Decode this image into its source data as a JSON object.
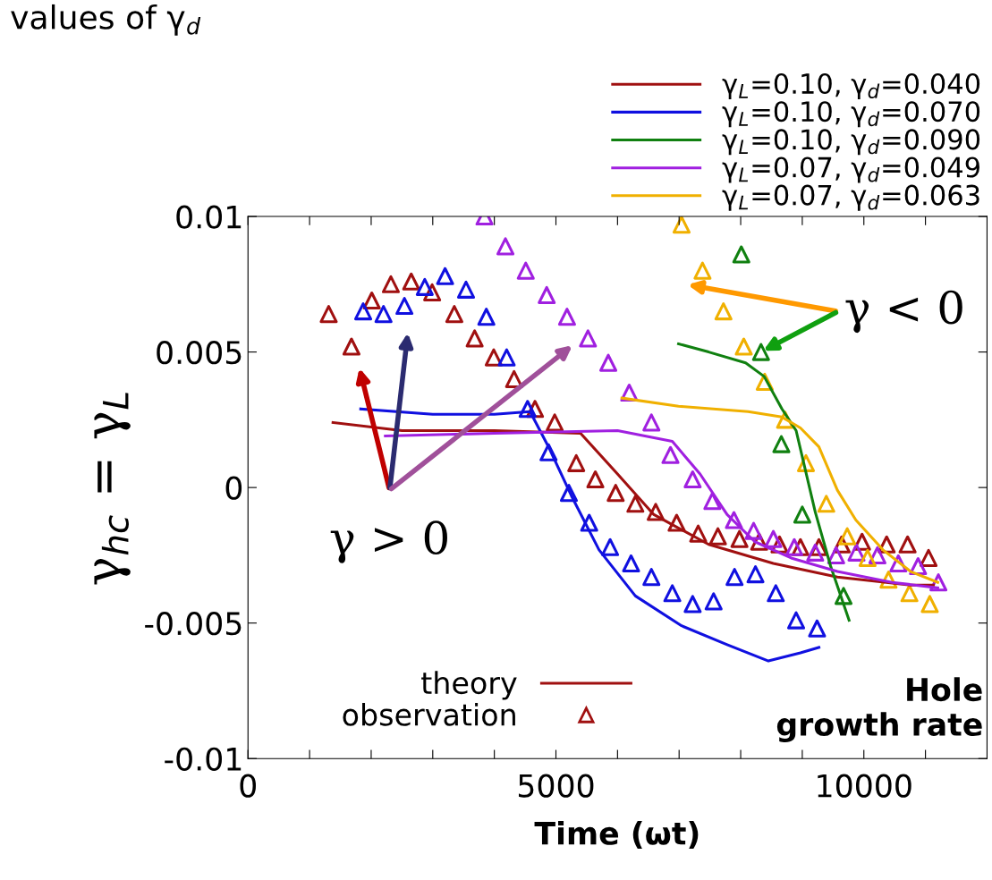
{
  "chart_data": {
    "type": "line",
    "xlabel": "Time (ωt)",
    "ylabel": "γ$_{hc}$ = γ$_{L}$",
    "xlim": [
      0,
      12000
    ],
    "ylim": [
      -0.01,
      0.01
    ],
    "xticks": [
      0,
      {
        "value": 1000,
        "label": null
      },
      {
        "value": 2000,
        "label": null
      },
      {
        "value": 3000,
        "label": null
      },
      {
        "value": 4000,
        "label": null
      },
      5000,
      {
        "value": 6000,
        "label": null
      },
      {
        "value": 7000,
        "label": null
      },
      {
        "value": 8000,
        "label": null
      },
      {
        "value": 9000,
        "label": null
      },
      10000,
      {
        "value": 11000,
        "label": null
      }
    ],
    "yticks": [
      {
        "value": 0.01,
        "label": "0.01"
      },
      {
        "value": 0.005,
        "label": "0.005"
      },
      {
        "value": 0,
        "label": "0"
      },
      {
        "value": -0.005,
        "label": "-0.005"
      },
      {
        "value": -0.01,
        "label": "-0.01"
      }
    ],
    "grid": false,
    "legend": "top right",
    "line_style": "solid",
    "annotations": [
      "values of γ$_{d}$",
      "theory",
      "observation",
      "Hole\ngrowth rate",
      "γ > 0",
      {
        "text": "γ < 0",
        "x": 8330,
        "y": 0.005
      }
    ],
    "series": [
      {
        "name": "γ$_{L}$=0.10, γ$_{d}$=0.040",
        "color": "#a01010",
        "x": [
          1380,
          2500,
          4000,
          5400,
          6000,
          6590,
          7480,
          8530,
          9570,
          10760,
          11130
        ],
        "values": [
          0.0024,
          0.0021,
          0.0021,
          0.002,
          0.0005,
          -0.001,
          -0.0021,
          -0.0028,
          -0.0033,
          -0.0036,
          -0.0036
        ]
      },
      {
        "name": "γ$_{L}$=0.10, γ$_{d}$=0.070",
        "color": "#1010e0",
        "x": [
          1830,
          3000,
          4000,
          4580,
          4880,
          5250,
          5700,
          6290,
          7040,
          7780,
          8450,
          8970,
          9270
        ],
        "values": [
          0.0029,
          0.0027,
          0.0027,
          0.0028,
          0.0015,
          -0.0003,
          -0.0023,
          -0.004,
          -0.0051,
          -0.0058,
          -0.0064,
          -0.0061,
          -0.0059
        ]
      },
      {
        "name": "γ$_{L}$=0.10, γ$_{d}$=0.090",
        "color": "#108010",
        "x": [
          6990,
          7480,
          8080,
          8380,
          8670,
          8900,
          9210,
          9460,
          9760
        ],
        "values": [
          0.0053,
          0.005,
          0.0046,
          0.0041,
          0.0029,
          0.0021,
          -0.0009,
          -0.0029,
          -0.0049
        ]
      },
      {
        "name": "γ$_{L}$=0.07, γ$_{d}$=0.049",
        "color": "#a020e0",
        "x": [
          2230,
          4000,
          6000,
          6890,
          7340,
          7780,
          8230,
          8820,
          9570,
          10460,
          11200
        ],
        "values": [
          0.0019,
          0.002,
          0.0021,
          0.0017,
          0.0005,
          -0.001,
          -0.002,
          -0.0026,
          -0.0031,
          -0.0035,
          -0.0037
        ]
      },
      {
        "name": "γ$_{L}$=0.07, γ$_{d}$=0.063",
        "color": "#f0b000",
        "x": [
          6070,
          6990,
          8120,
          8670,
          8970,
          9270,
          9570,
          9870,
          10310,
          10760,
          11200
        ],
        "values": [
          0.0033,
          0.003,
          0.0028,
          0.0026,
          0.0022,
          0.0015,
          -0.0001,
          -0.0012,
          -0.0023,
          -0.0031,
          -0.0035
        ]
      },
      {
        "type": "scatter",
        "marker": "triangle",
        "color": "#a01010",
        "x": [
          1310,
          1680,
          2010,
          2320,
          2650,
          2990,
          3350,
          3680,
          3990,
          4320,
          4660,
          4980,
          5330,
          5640,
          5970,
          6290,
          6620,
          6960,
          7310,
          7630,
          7980,
          8300,
          8630,
          8970,
          9270,
          9640,
          9970,
          10370,
          10710,
          11050
        ],
        "values": [
          0.0064,
          0.0052,
          0.0069,
          0.0075,
          0.0076,
          0.0072,
          0.0064,
          0.0055,
          0.0048,
          0.004,
          0.0029,
          0.0024,
          0.0009,
          0.0003,
          -0.0002,
          -0.0006,
          -0.0009,
          -0.0013,
          -0.0017,
          -0.0018,
          -0.0019,
          -0.002,
          -0.0021,
          -0.0022,
          -0.0022,
          -0.0021,
          -0.002,
          -0.0021,
          -0.0021,
          -0.0026
        ]
      },
      {
        "type": "scatter",
        "marker": "triangle",
        "color": "#1010e0",
        "x": [
          1870,
          2200,
          2540,
          2870,
          3200,
          3540,
          3870,
          4200,
          4540,
          4880,
          5210,
          5540,
          5880,
          6220,
          6550,
          6890,
          7220,
          7560,
          7900,
          8240,
          8570,
          8900,
          9240
        ],
        "values": [
          0.0065,
          0.0064,
          0.0067,
          0.0074,
          0.0078,
          0.0073,
          0.0063,
          0.0048,
          0.0029,
          0.0013,
          -0.0002,
          -0.0013,
          -0.0022,
          -0.0028,
          -0.0033,
          -0.0039,
          -0.0043,
          -0.0042,
          -0.0033,
          -0.0032,
          -0.0039,
          -0.0049,
          -0.0052
        ]
      },
      {
        "type": "scatter",
        "marker": "triangle",
        "color": "#108010",
        "x": [
          8010,
          8330,
          8660,
          9000,
          9670
        ],
        "values": [
          0.0086,
          0.005,
          0.0016,
          -0.001,
          -0.004
        ]
      },
      {
        "type": "scatter",
        "marker": "triangle",
        "color": "#a020e0",
        "x": [
          3840,
          4180,
          4510,
          4850,
          5180,
          5520,
          5850,
          6190,
          6550,
          6860,
          7220,
          7540,
          7890,
          8210,
          8530,
          8870,
          9210,
          9550,
          9880,
          10220,
          10560,
          10880,
          11210
        ],
        "values": [
          0.01,
          0.0089,
          0.008,
          0.0071,
          0.0063,
          0.0055,
          0.0046,
          0.0035,
          0.0024,
          0.0012,
          0.0003,
          -0.0005,
          -0.0012,
          -0.0016,
          -0.0019,
          -0.0022,
          -0.0024,
          -0.0025,
          -0.0024,
          -0.0025,
          -0.0028,
          -0.0029,
          -0.0035
        ]
      },
      {
        "type": "scatter",
        "marker": "triangle",
        "color": "#f0b000",
        "x": [
          7040,
          7380,
          7720,
          8050,
          8390,
          8720,
          9060,
          9390,
          9730,
          10060,
          10400,
          10740,
          11070
        ],
        "values": [
          0.0097,
          0.008,
          0.0065,
          0.0052,
          0.0039,
          0.0025,
          0.0009,
          -0.0006,
          -0.0018,
          -0.0026,
          -0.0034,
          -0.0039,
          -0.0043
        ]
      }
    ]
  }
}
